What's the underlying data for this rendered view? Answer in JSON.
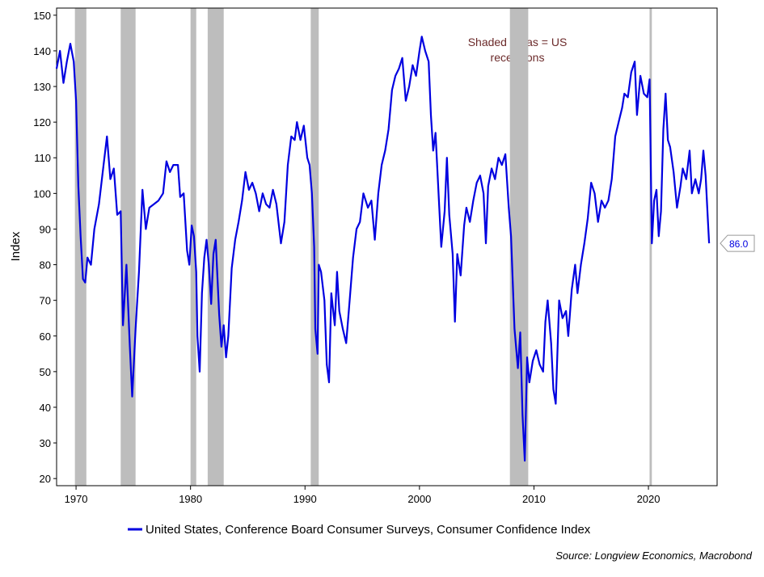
{
  "chart_data": {
    "type": "line",
    "y_label": "Index",
    "annotation": [
      "Shaded areas = US",
      "recessions"
    ],
    "source": "Source: Longview Economics, Macrobond",
    "xlim": [
      1968.3,
      2026
    ],
    "xticks": [
      1970,
      1980,
      1990,
      2000,
      2010,
      2020
    ],
    "ylim": [
      18,
      152
    ],
    "yticks": [
      20,
      30,
      40,
      50,
      60,
      70,
      80,
      90,
      100,
      110,
      120,
      130,
      140,
      150
    ],
    "recessions": [
      [
        1969.9,
        1970.9
      ],
      [
        1973.9,
        1975.2
      ],
      [
        1980.0,
        1980.5
      ],
      [
        1981.5,
        1982.9
      ],
      [
        1990.5,
        1991.2
      ],
      [
        2007.9,
        2009.5
      ],
      [
        2020.1,
        2020.3
      ]
    ],
    "x": [
      1968.3,
      1968.6,
      1968.9,
      1969.2,
      1969.5,
      1969.8,
      1970.0,
      1970.2,
      1970.4,
      1970.6,
      1970.8,
      1971.0,
      1971.3,
      1971.6,
      1972.0,
      1972.4,
      1972.7,
      1973.0,
      1973.3,
      1973.6,
      1973.9,
      1974.1,
      1974.4,
      1974.7,
      1974.9,
      1975.2,
      1975.5,
      1975.8,
      1976.1,
      1976.4,
      1976.8,
      1977.2,
      1977.6,
      1977.9,
      1978.2,
      1978.5,
      1978.9,
      1979.1,
      1979.4,
      1979.7,
      1979.9,
      1980.1,
      1980.3,
      1980.5,
      1980.6,
      1980.8,
      1981.0,
      1981.2,
      1981.4,
      1981.6,
      1981.8,
      1982.0,
      1982.2,
      1982.5,
      1982.7,
      1982.9,
      1983.1,
      1983.3,
      1983.6,
      1983.9,
      1984.2,
      1984.5,
      1984.8,
      1985.1,
      1985.4,
      1985.7,
      1986.0,
      1986.3,
      1986.6,
      1986.9,
      1987.2,
      1987.5,
      1987.9,
      1988.2,
      1988.5,
      1988.8,
      1989.1,
      1989.3,
      1989.6,
      1989.9,
      1990.2,
      1990.4,
      1990.6,
      1990.8,
      1990.9,
      1991.1,
      1991.2,
      1991.4,
      1991.7,
      1991.9,
      1992.1,
      1992.3,
      1992.6,
      1992.8,
      1993.0,
      1993.3,
      1993.6,
      1993.9,
      1994.2,
      1994.5,
      1994.8,
      1995.1,
      1995.5,
      1995.8,
      1996.1,
      1996.4,
      1996.7,
      1997.0,
      1997.3,
      1997.6,
      1997.9,
      1998.2,
      1998.5,
      1998.8,
      1999.1,
      1999.4,
      1999.7,
      2000.0,
      2000.2,
      2000.5,
      2000.8,
      2001.0,
      2001.2,
      2001.4,
      2001.7,
      2001.9,
      2002.2,
      2002.4,
      2002.6,
      2002.9,
      2003.1,
      2003.3,
      2003.6,
      2003.9,
      2004.1,
      2004.4,
      2004.7,
      2005.0,
      2005.3,
      2005.6,
      2005.8,
      2006.0,
      2006.3,
      2006.6,
      2006.9,
      2007.2,
      2007.5,
      2007.8,
      2008.0,
      2008.3,
      2008.6,
      2008.8,
      2009.0,
      2009.2,
      2009.4,
      2009.6,
      2009.9,
      2010.2,
      2010.5,
      2010.8,
      2011.0,
      2011.2,
      2011.5,
      2011.7,
      2011.9,
      2012.2,
      2012.5,
      2012.8,
      2013.0,
      2013.3,
      2013.6,
      2013.8,
      2014.1,
      2014.4,
      2014.7,
      2015.0,
      2015.3,
      2015.6,
      2015.9,
      2016.2,
      2016.5,
      2016.8,
      2017.1,
      2017.4,
      2017.7,
      2017.9,
      2018.2,
      2018.5,
      2018.8,
      2019.0,
      2019.3,
      2019.6,
      2019.9,
      2020.1,
      2020.3,
      2020.5,
      2020.7,
      2020.9,
      2021.1,
      2021.3,
      2021.5,
      2021.7,
      2021.9,
      2022.2,
      2022.5,
      2022.8,
      2023.0,
      2023.3,
      2023.6,
      2023.8,
      2024.1,
      2024.4,
      2024.6,
      2024.8,
      2025.0,
      2025.2,
      2025.3
    ],
    "series": [
      {
        "name": "United States, Conference Board Consumer Surveys, Consumer Confidence Index",
        "color": "#0000e0",
        "values": [
          135,
          140,
          131,
          137,
          142,
          137,
          126,
          102,
          88,
          76,
          75,
          82,
          80,
          90,
          97,
          108,
          116,
          104,
          107,
          94,
          95,
          63,
          80,
          57,
          43,
          62,
          78,
          101,
          90,
          96,
          97,
          98,
          100,
          109,
          106,
          108,
          108,
          99,
          100,
          84,
          80,
          91,
          88,
          78,
          60,
          50,
          72,
          82,
          87,
          80,
          69,
          83,
          87,
          66,
          57,
          63,
          54,
          60,
          79,
          87,
          92,
          98,
          106,
          101,
          103,
          100,
          95,
          100,
          97,
          96,
          101,
          97,
          86,
          92,
          108,
          116,
          115,
          120,
          115,
          119,
          110,
          108,
          100,
          85,
          62,
          55,
          80,
          78,
          70,
          52,
          47,
          72,
          63,
          78,
          67,
          62,
          58,
          70,
          82,
          90,
          92,
          100,
          96,
          98,
          87,
          100,
          108,
          112,
          118,
          129,
          133,
          135,
          138,
          126,
          130,
          136,
          133,
          140,
          144,
          140,
          137,
          122,
          112,
          117,
          98,
          85,
          95,
          110,
          94,
          83,
          64,
          83,
          77,
          91,
          96,
          92,
          98,
          103,
          105,
          100,
          86,
          102,
          107,
          104,
          110,
          108,
          111,
          96,
          88,
          62,
          51,
          61,
          38,
          25,
          54,
          47,
          53,
          56,
          52,
          50,
          64,
          70,
          58,
          45,
          41,
          70,
          65,
          67,
          60,
          73,
          80,
          72,
          80,
          86,
          93,
          103,
          100,
          92,
          98,
          96,
          98,
          104,
          116,
          120,
          124,
          128,
          127,
          134,
          137,
          122,
          133,
          128,
          127,
          132,
          86,
          98,
          101,
          88,
          95,
          118,
          128,
          115,
          113,
          106,
          96,
          102,
          107,
          104,
          112,
          100,
          104,
          100,
          104,
          112,
          105,
          92,
          86
        ],
        "last_label": "86.0"
      }
    ]
  }
}
